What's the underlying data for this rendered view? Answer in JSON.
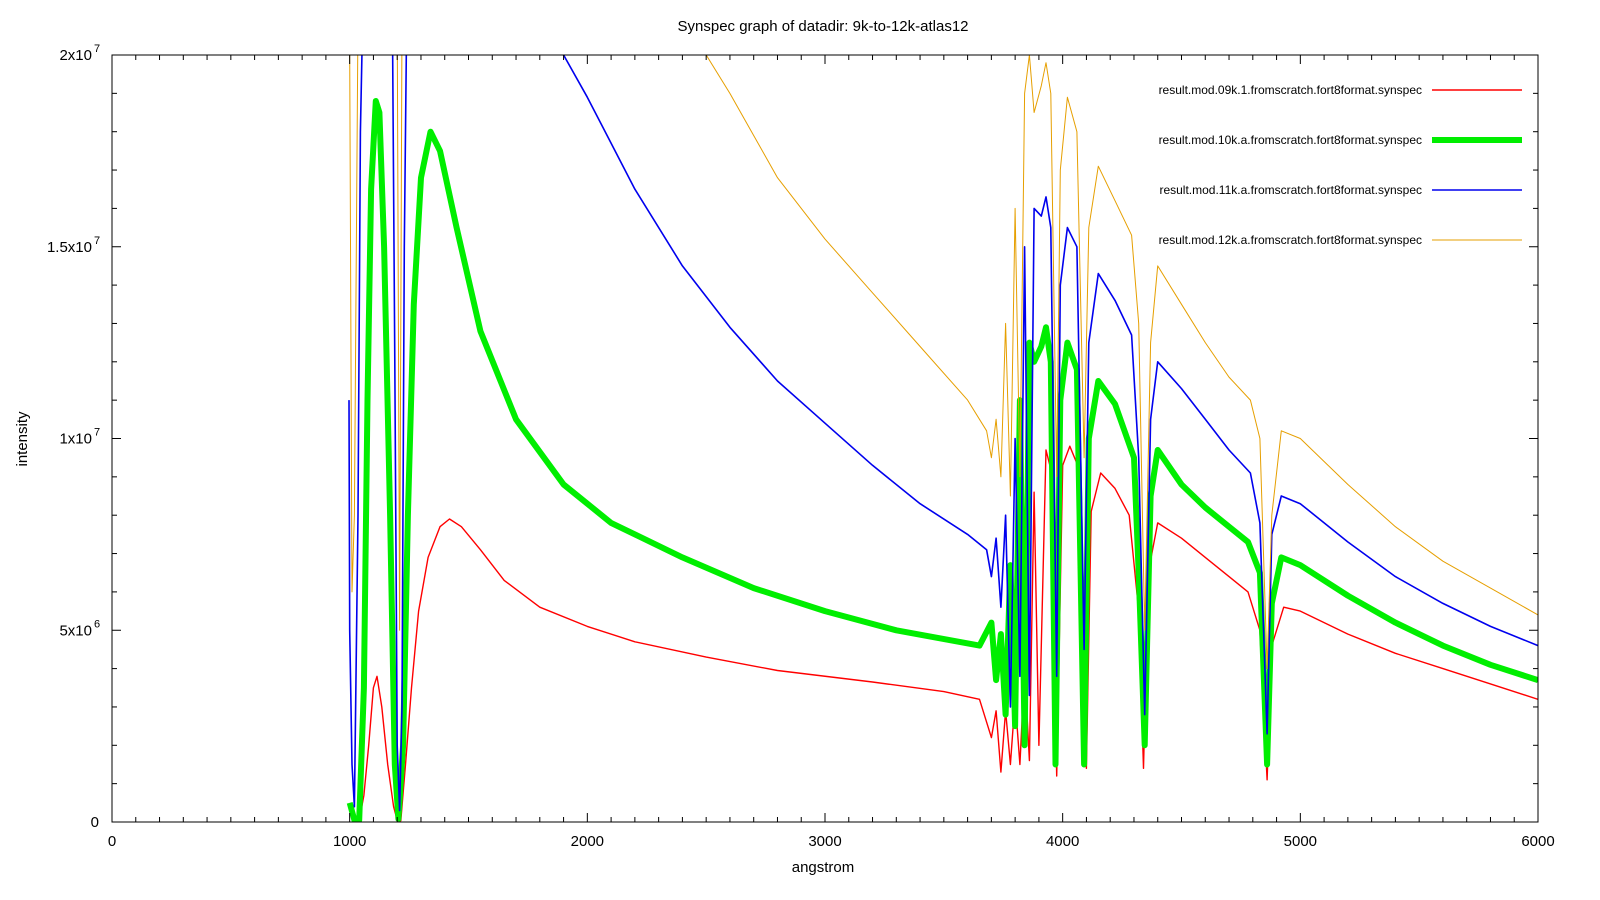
{
  "chart_data": {
    "type": "line",
    "title": "Synspec graph of datadir: 9k-to-12k-atlas12",
    "xlabel": "angstrom",
    "ylabel": "intensity",
    "xlim": [
      0,
      6000
    ],
    "ylim": [
      0,
      20000000
    ],
    "grid": false,
    "legend_position": "top-right",
    "x_ticks": [
      {
        "value": 0,
        "label": "0"
      },
      {
        "value": 1000,
        "label": "1000"
      },
      {
        "value": 2000,
        "label": "2000"
      },
      {
        "value": 3000,
        "label": "3000"
      },
      {
        "value": 4000,
        "label": "4000"
      },
      {
        "value": 5000,
        "label": "5000"
      },
      {
        "value": 6000,
        "label": "6000"
      }
    ],
    "y_ticks": [
      {
        "value": 0,
        "mantissa": "0",
        "exponent": ""
      },
      {
        "value": 5000000,
        "mantissa": "5x10",
        "exponent": "6"
      },
      {
        "value": 10000000,
        "mantissa": "1x10",
        "exponent": "7"
      },
      {
        "value": 15000000,
        "mantissa": "1.5x10",
        "exponent": "7"
      },
      {
        "value": 20000000,
        "mantissa": "2x10",
        "exponent": "7"
      }
    ],
    "series": [
      {
        "name": "result.mod.09k.1.fromscratch.fort8format.synspec",
        "color": "#ff0000",
        "width": 1.4,
        "points": [
          [
            1000,
            400000
          ],
          [
            1020,
            50000
          ],
          [
            1040,
            30000
          ],
          [
            1060,
            700000
          ],
          [
            1080,
            2000000
          ],
          [
            1100,
            3500000
          ],
          [
            1115,
            3800000
          ],
          [
            1135,
            3000000
          ],
          [
            1160,
            1500000
          ],
          [
            1185,
            400000
          ],
          [
            1200,
            50000
          ],
          [
            1215,
            30000
          ],
          [
            1235,
            1500000
          ],
          [
            1260,
            3500000
          ],
          [
            1290,
            5500000
          ],
          [
            1330,
            6900000
          ],
          [
            1380,
            7700000
          ],
          [
            1420,
            7900000
          ],
          [
            1470,
            7700000
          ],
          [
            1550,
            7100000
          ],
          [
            1650,
            6300000
          ],
          [
            1800,
            5600000
          ],
          [
            2000,
            5100000
          ],
          [
            2200,
            4700000
          ],
          [
            2500,
            4300000
          ],
          [
            2800,
            3950000
          ],
          [
            3200,
            3650000
          ],
          [
            3500,
            3400000
          ],
          [
            3650,
            3200000
          ],
          [
            3700,
            2200000
          ],
          [
            3720,
            2900000
          ],
          [
            3740,
            1300000
          ],
          [
            3760,
            2900000
          ],
          [
            3780,
            1500000
          ],
          [
            3800,
            3200000
          ],
          [
            3820,
            1500000
          ],
          [
            3840,
            4000000
          ],
          [
            3860,
            1600000
          ],
          [
            3880,
            8600000
          ],
          [
            3900,
            2000000
          ],
          [
            3930,
            9700000
          ],
          [
            3950,
            9200000
          ],
          [
            3975,
            1200000
          ],
          [
            4000,
            9300000
          ],
          [
            4030,
            9800000
          ],
          [
            4070,
            9200000
          ],
          [
            4100,
            1400000
          ],
          [
            4120,
            8100000
          ],
          [
            4160,
            9100000
          ],
          [
            4220,
            8700000
          ],
          [
            4280,
            8000000
          ],
          [
            4320,
            5500000
          ],
          [
            4340,
            1400000
          ],
          [
            4360,
            6500000
          ],
          [
            4400,
            7800000
          ],
          [
            4500,
            7400000
          ],
          [
            4600,
            6900000
          ],
          [
            4700,
            6400000
          ],
          [
            4780,
            6000000
          ],
          [
            4830,
            5000000
          ],
          [
            4860,
            1100000
          ],
          [
            4880,
            4600000
          ],
          [
            4930,
            5600000
          ],
          [
            5000,
            5500000
          ],
          [
            5200,
            4900000
          ],
          [
            5400,
            4400000
          ],
          [
            5600,
            4000000
          ],
          [
            5800,
            3600000
          ],
          [
            6000,
            3200000
          ]
        ]
      },
      {
        "name": "result.mod.10k.a.fromscratch.fort8format.synspec",
        "color": "#00ee00",
        "width": 6,
        "points": [
          [
            1000,
            500000
          ],
          [
            1020,
            50000
          ],
          [
            1040,
            50000
          ],
          [
            1060,
            3500000
          ],
          [
            1075,
            11000000
          ],
          [
            1090,
            16500000
          ],
          [
            1110,
            18800000
          ],
          [
            1125,
            18500000
          ],
          [
            1145,
            15000000
          ],
          [
            1170,
            8000000
          ],
          [
            1190,
            1500000
          ],
          [
            1205,
            80000
          ],
          [
            1225,
            2000000
          ],
          [
            1245,
            8000000
          ],
          [
            1270,
            13500000
          ],
          [
            1300,
            16800000
          ],
          [
            1340,
            18000000
          ],
          [
            1380,
            17500000
          ],
          [
            1450,
            15500000
          ],
          [
            1550,
            12800000
          ],
          [
            1700,
            10500000
          ],
          [
            1900,
            8800000
          ],
          [
            2100,
            7800000
          ],
          [
            2400,
            6900000
          ],
          [
            2700,
            6100000
          ],
          [
            3000,
            5500000
          ],
          [
            3300,
            5000000
          ],
          [
            3650,
            4600000
          ],
          [
            3700,
            5200000
          ],
          [
            3720,
            3700000
          ],
          [
            3740,
            4900000
          ],
          [
            3760,
            2800000
          ],
          [
            3780,
            6700000
          ],
          [
            3800,
            2500000
          ],
          [
            3820,
            11000000
          ],
          [
            3840,
            2000000
          ],
          [
            3860,
            12500000
          ],
          [
            3880,
            12000000
          ],
          [
            3910,
            12400000
          ],
          [
            3930,
            12900000
          ],
          [
            3950,
            12000000
          ],
          [
            3970,
            1500000
          ],
          [
            3990,
            11000000
          ],
          [
            4020,
            12500000
          ],
          [
            4060,
            11800000
          ],
          [
            4090,
            1500000
          ],
          [
            4110,
            10000000
          ],
          [
            4150,
            11500000
          ],
          [
            4220,
            10900000
          ],
          [
            4300,
            9500000
          ],
          [
            4320,
            6500000
          ],
          [
            4345,
            2000000
          ],
          [
            4370,
            8500000
          ],
          [
            4400,
            9700000
          ],
          [
            4500,
            8800000
          ],
          [
            4600,
            8200000
          ],
          [
            4700,
            7700000
          ],
          [
            4780,
            7300000
          ],
          [
            4830,
            6500000
          ],
          [
            4860,
            1500000
          ],
          [
            4880,
            5700000
          ],
          [
            4920,
            6900000
          ],
          [
            5000,
            6700000
          ],
          [
            5200,
            5900000
          ],
          [
            5400,
            5200000
          ],
          [
            5600,
            4600000
          ],
          [
            5800,
            4100000
          ],
          [
            6000,
            3700000
          ]
        ]
      },
      {
        "name": "result.mod.11k.a.fromscratch.fort8format.synspec",
        "color": "#0000ee",
        "width": 1.6,
        "points": [
          [
            997,
            11000000
          ],
          [
            1000,
            5000000
          ],
          [
            1010,
            1500000
          ],
          [
            1020,
            400000
          ],
          [
            1035,
            8000000
          ],
          [
            1045,
            18000000
          ],
          [
            1055,
            21000000
          ],
          [
            1170,
            21000000
          ],
          [
            1180,
            21000000
          ],
          [
            1190,
            12000000
          ],
          [
            1200,
            2000000
          ],
          [
            1210,
            300000
          ],
          [
            1220,
            3000000
          ],
          [
            1230,
            15000000
          ],
          [
            1240,
            21000000
          ],
          [
            1900,
            20000000
          ],
          [
            2000,
            18900000
          ],
          [
            2200,
            16500000
          ],
          [
            2400,
            14500000
          ],
          [
            2600,
            12900000
          ],
          [
            2800,
            11500000
          ],
          [
            3000,
            10400000
          ],
          [
            3200,
            9300000
          ],
          [
            3400,
            8300000
          ],
          [
            3600,
            7500000
          ],
          [
            3680,
            7100000
          ],
          [
            3700,
            6400000
          ],
          [
            3720,
            7400000
          ],
          [
            3740,
            5600000
          ],
          [
            3760,
            8000000
          ],
          [
            3780,
            3000000
          ],
          [
            3800,
            10000000
          ],
          [
            3820,
            3800000
          ],
          [
            3840,
            15000000
          ],
          [
            3860,
            3300000
          ],
          [
            3880,
            16000000
          ],
          [
            3910,
            15800000
          ],
          [
            3930,
            16300000
          ],
          [
            3950,
            15500000
          ],
          [
            3975,
            3800000
          ],
          [
            3990,
            14000000
          ],
          [
            4020,
            15500000
          ],
          [
            4060,
            15000000
          ],
          [
            4090,
            4500000
          ],
          [
            4110,
            12500000
          ],
          [
            4150,
            14300000
          ],
          [
            4220,
            13600000
          ],
          [
            4290,
            12700000
          ],
          [
            4320,
            9500000
          ],
          [
            4345,
            2800000
          ],
          [
            4370,
            10500000
          ],
          [
            4400,
            12000000
          ],
          [
            4500,
            11300000
          ],
          [
            4600,
            10500000
          ],
          [
            4700,
            9700000
          ],
          [
            4790,
            9100000
          ],
          [
            4830,
            7800000
          ],
          [
            4860,
            2300000
          ],
          [
            4880,
            7500000
          ],
          [
            4920,
            8500000
          ],
          [
            5000,
            8300000
          ],
          [
            5200,
            7300000
          ],
          [
            5400,
            6400000
          ],
          [
            5600,
            5700000
          ],
          [
            5800,
            5100000
          ],
          [
            6000,
            4600000
          ]
        ]
      },
      {
        "name": "result.mod.12k.a.fromscratch.fort8format.synspec",
        "color": "#e69f00",
        "width": 1,
        "points": [
          [
            1000,
            20000000
          ],
          [
            1010,
            6000000
          ],
          [
            1020,
            8000000
          ],
          [
            1035,
            21000000
          ],
          [
            1200,
            21000000
          ],
          [
            1210,
            5000000
          ],
          [
            1220,
            21000000
          ],
          [
            2500,
            20000000
          ],
          [
            2600,
            19000000
          ],
          [
            2800,
            16800000
          ],
          [
            3000,
            15200000
          ],
          [
            3200,
            13800000
          ],
          [
            3400,
            12400000
          ],
          [
            3600,
            11000000
          ],
          [
            3680,
            10200000
          ],
          [
            3700,
            9500000
          ],
          [
            3720,
            10500000
          ],
          [
            3740,
            9000000
          ],
          [
            3760,
            13000000
          ],
          [
            3780,
            8500000
          ],
          [
            3800,
            16000000
          ],
          [
            3820,
            9000000
          ],
          [
            3840,
            19000000
          ],
          [
            3860,
            20000000
          ],
          [
            3880,
            18500000
          ],
          [
            3910,
            19200000
          ],
          [
            3930,
            19800000
          ],
          [
            3950,
            19000000
          ],
          [
            3975,
            9000000
          ],
          [
            3990,
            17000000
          ],
          [
            4020,
            18900000
          ],
          [
            4060,
            18000000
          ],
          [
            4090,
            9500000
          ],
          [
            4110,
            15500000
          ],
          [
            4150,
            17100000
          ],
          [
            4220,
            16200000
          ],
          [
            4290,
            15300000
          ],
          [
            4320,
            13000000
          ],
          [
            4345,
            5000000
          ],
          [
            4370,
            12500000
          ],
          [
            4400,
            14500000
          ],
          [
            4500,
            13500000
          ],
          [
            4600,
            12500000
          ],
          [
            4700,
            11600000
          ],
          [
            4790,
            11000000
          ],
          [
            4830,
            10000000
          ],
          [
            4860,
            4000000
          ],
          [
            4880,
            8000000
          ],
          [
            4920,
            10200000
          ],
          [
            5000,
            10000000
          ],
          [
            5200,
            8800000
          ],
          [
            5400,
            7700000
          ],
          [
            5600,
            6800000
          ],
          [
            5800,
            6100000
          ],
          [
            6000,
            5400000
          ]
        ]
      }
    ]
  }
}
